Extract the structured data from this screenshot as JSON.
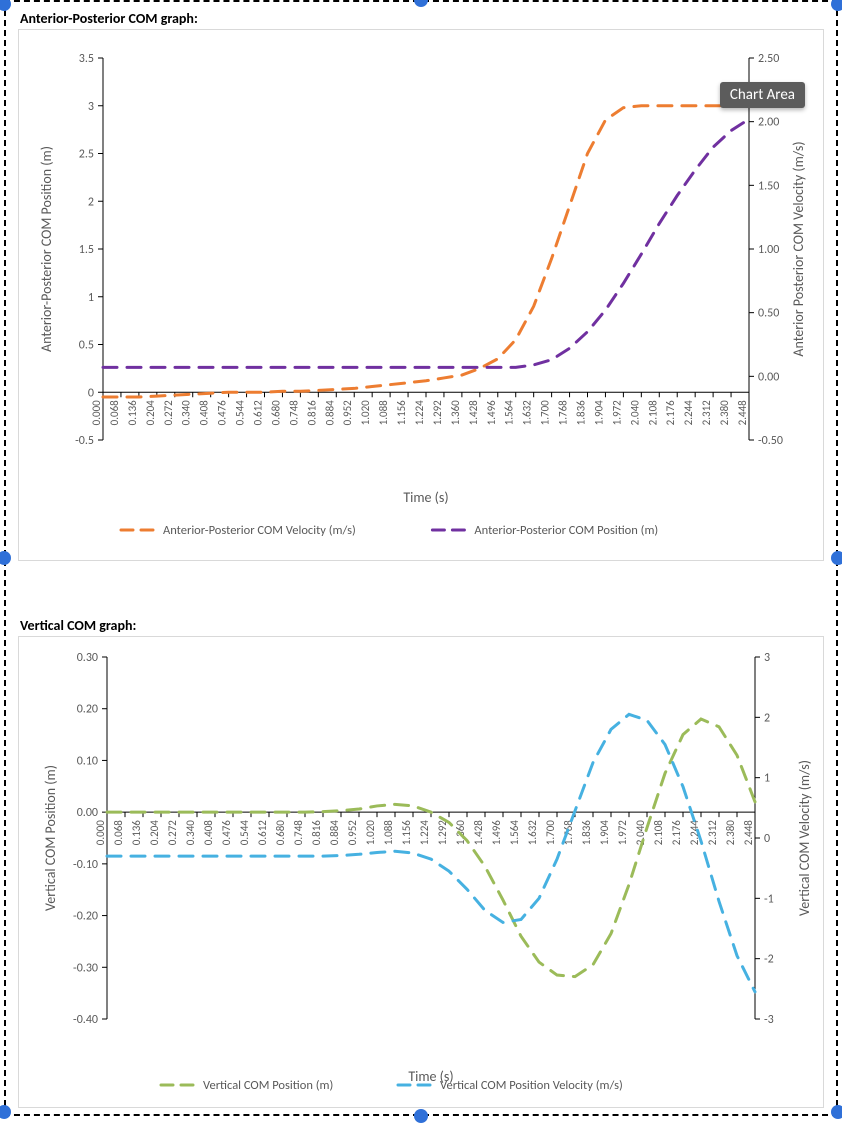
{
  "selection": {
    "border_color": "#000000",
    "dash": "8 6",
    "handle_color": "#2f70d8"
  },
  "chart1": {
    "title": "Anterior-Posterior COM graph:",
    "type": "line-dual-y",
    "x_label": "Time (s)",
    "y_left_label": "Anterior-Posterior COM Position (m)",
    "y_right_label": "Anterior Posterior COM Velocity (m/s)",
    "x_ticks": [
      "0.000",
      "0.068",
      "0.136",
      "0.204",
      "0.272",
      "0.340",
      "0.408",
      "0.476",
      "0.544",
      "0.612",
      "0.680",
      "0.748",
      "0.816",
      "0.884",
      "0.952",
      "1.020",
      "1.088",
      "1.156",
      "1.224",
      "1.292",
      "1.360",
      "1.428",
      "1.496",
      "1.564",
      "1.632",
      "1.700",
      "1.768",
      "1.836",
      "1.904",
      "1.972",
      "2.040",
      "2.108",
      "2.176",
      "2.244",
      "2.312",
      "2.380",
      "2.448"
    ],
    "y_left_ticks": [
      -0.5,
      0,
      0.5,
      1,
      1.5,
      2,
      2.5,
      3,
      3.5
    ],
    "y_right_ticks": [
      -0.5,
      0.0,
      0.5,
      1.0,
      1.5,
      2.0,
      2.5
    ],
    "y_left_lim": [
      -0.5,
      3.5
    ],
    "y_right_lim": [
      -0.5,
      2.5
    ],
    "series": [
      {
        "name": "Anterior-Posterior COM Velocity (m/s)",
        "axis": "left",
        "color": "#ed7d31",
        "dash": "14 10",
        "width": 3,
        "values": [
          -0.05,
          -0.05,
          -0.05,
          -0.04,
          -0.03,
          -0.02,
          -0.01,
          0.0,
          0.0,
          0.0,
          0.01,
          0.01,
          0.02,
          0.03,
          0.04,
          0.06,
          0.08,
          0.1,
          0.12,
          0.15,
          0.18,
          0.25,
          0.35,
          0.55,
          0.9,
          1.4,
          1.95,
          2.5,
          2.85,
          2.98,
          3.0,
          3.0,
          3.0,
          3.0,
          3.0,
          3.0,
          3.0
        ]
      },
      {
        "name": "Anterior-Posterior COM Position (m)",
        "axis": "right",
        "color": "#7030a0",
        "dash": "14 10",
        "width": 3,
        "values": [
          0.07,
          0.07,
          0.07,
          0.07,
          0.07,
          0.07,
          0.07,
          0.07,
          0.07,
          0.07,
          0.07,
          0.07,
          0.07,
          0.07,
          0.07,
          0.07,
          0.07,
          0.07,
          0.07,
          0.07,
          0.07,
          0.07,
          0.07,
          0.07,
          0.09,
          0.13,
          0.22,
          0.35,
          0.52,
          0.73,
          0.96,
          1.2,
          1.42,
          1.62,
          1.8,
          1.93,
          2.02
        ]
      }
    ],
    "legend": [
      {
        "label": "Anterior-Posterior COM Velocity (m/s)",
        "color": "#ed7d31",
        "dash": "14 10"
      },
      {
        "label": "Anterior-Posterior COM Position (m)",
        "color": "#7030a0",
        "dash": "14 10"
      }
    ],
    "tooltip": "Chart Area",
    "plot_bg": "#ffffff",
    "axis_color": "#000000",
    "text_color": "#595959",
    "title_fontsize": 14,
    "label_fontsize": 14,
    "tick_fontsize": 12
  },
  "chart2": {
    "title": "Vertical COM graph:",
    "type": "line-dual-y",
    "x_label": "Time (s)",
    "y_left_label": "Vertical COM Position (m)",
    "y_right_label": "Vertical COM Velocity (m/s)",
    "x_ticks": [
      "0.000",
      "0.068",
      "0.136",
      "0.204",
      "0.272",
      "0.340",
      "0.408",
      "0.476",
      "0.544",
      "0.612",
      "0.680",
      "0.748",
      "0.816",
      "0.884",
      "0.952",
      "1.020",
      "1.088",
      "1.156",
      "1.224",
      "1.292",
      "1.360",
      "1.428",
      "1.496",
      "1.564",
      "1.632",
      "1.700",
      "1.768",
      "1.836",
      "1.904",
      "1.972",
      "2.040",
      "2.108",
      "2.176",
      "2.244",
      "2.312",
      "2.380",
      "2.448"
    ],
    "y_left_ticks": [
      -0.4,
      -0.3,
      -0.2,
      -0.1,
      0.0,
      0.1,
      0.2,
      0.3
    ],
    "y_right_ticks": [
      -3,
      -2,
      -1,
      0,
      1,
      2,
      3
    ],
    "y_left_lim": [
      -0.4,
      0.3
    ],
    "y_right_lim": [
      -3,
      3
    ],
    "series": [
      {
        "name": "Vertical COM Position (m)",
        "axis": "left",
        "color": "#9bbb59",
        "dash": "14 10",
        "width": 3,
        "values": [
          0.0,
          0.0,
          0.0,
          0.0,
          0.0,
          0.0,
          0.0,
          0.0,
          0.0,
          0.0,
          0.0,
          0.0,
          0.001,
          0.003,
          0.006,
          0.012,
          0.015,
          0.012,
          0.0,
          -0.02,
          -0.055,
          -0.105,
          -0.17,
          -0.24,
          -0.29,
          -0.315,
          -0.318,
          -0.295,
          -0.235,
          -0.14,
          -0.03,
          0.075,
          0.15,
          0.18,
          0.165,
          0.11,
          0.02
        ]
      },
      {
        "name": "Vertical  COM  Position Velocity (m/s)",
        "axis": "right",
        "color": "#46b1e1",
        "dash": "14 10",
        "width": 3,
        "values": [
          -0.3,
          -0.3,
          -0.3,
          -0.3,
          -0.3,
          -0.3,
          -0.3,
          -0.3,
          -0.3,
          -0.3,
          -0.3,
          -0.3,
          -0.3,
          -0.29,
          -0.27,
          -0.24,
          -0.22,
          -0.25,
          -0.35,
          -0.55,
          -0.85,
          -1.2,
          -1.4,
          -1.35,
          -1.0,
          -0.35,
          0.45,
          1.25,
          1.8,
          2.05,
          1.95,
          1.55,
          0.85,
          -0.05,
          -1.05,
          -1.95,
          -2.55
        ]
      }
    ],
    "legend": [
      {
        "label": "Vertical COM Position (m)",
        "color": "#9bbb59",
        "dash": "14 10"
      },
      {
        "label": "Vertical  COM  Position Velocity (m/s)",
        "color": "#46b1e1",
        "dash": "14 10"
      }
    ],
    "plot_bg": "#ffffff",
    "axis_color": "#000000",
    "text_color": "#595959",
    "title_fontsize": 14,
    "label_fontsize": 14,
    "tick_fontsize": 12
  }
}
